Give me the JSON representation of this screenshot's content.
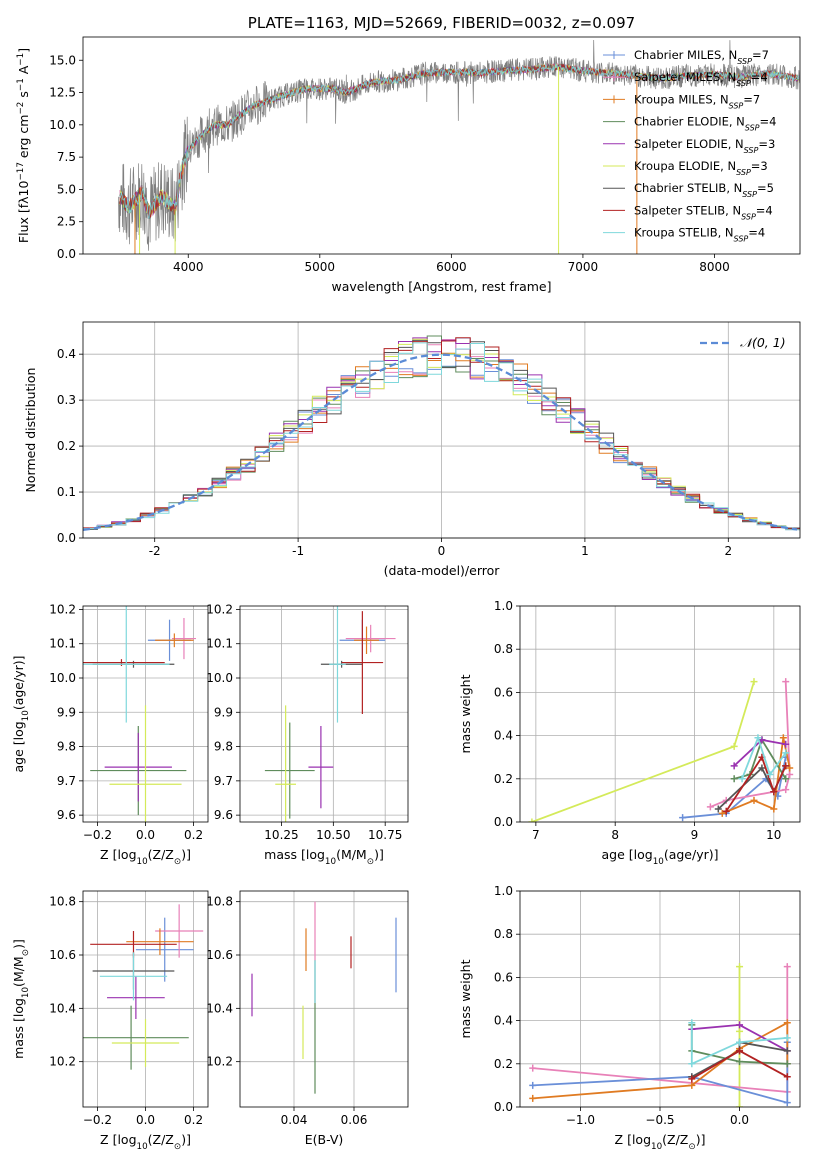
{
  "figure_title": "PLATE=1163, MJD=52669, FIBERID=0032, z=0.097",
  "colors": {
    "Chabrier MILES": "#6a8fd8",
    "Salpeter MILES": "#e881b8",
    "Kroupa MILES": "#e07b22",
    "Chabrier ELODIE": "#5f8c5c",
    "Salpeter ELODIE": "#9a32b0",
    "Kroupa ELODIE": "#d4ea5a",
    "Chabrier STELIB": "#555555",
    "Salpeter STELIB": "#b22222",
    "Kroupa STELIB": "#7fd8dc",
    "normal": "#5b8bd6"
  },
  "chart_data": [
    {
      "id": "spectrum",
      "type": "line",
      "title": "PLATE=1163, MJD=52669, FIBERID=0032, z=0.097",
      "xlabel": "wavelength [Angstrom, rest frame]",
      "ylabel": "Flux [fλ10⁻¹⁷ erg cm⁻² s⁻¹ A⁻¹]",
      "xlim": [
        3200,
        8650
      ],
      "ylim": [
        0,
        16.8
      ],
      "xticks": [
        4000,
        5000,
        6000,
        7000,
        8000
      ],
      "yticks": [
        0.0,
        2.5,
        5.0,
        7.5,
        10.0,
        12.5,
        15.0
      ],
      "grid": false,
      "legend_position": "top-right",
      "legend": [
        {
          "model": "Chabrier MILES",
          "label": "Chabrier MILES, N",
          "sub": "SSP",
          "rest": "=7"
        },
        {
          "model": "Salpeter MILES",
          "label": "Salpeter MILES, N",
          "sub": "SSP",
          "rest": "=4"
        },
        {
          "model": "Kroupa MILES",
          "label": "Kroupa MILES, N",
          "sub": "SSP",
          "rest": "=7"
        },
        {
          "model": "Chabrier ELODIE",
          "label": "Chabrier ELODIE, N",
          "sub": "SSP",
          "rest": "=4"
        },
        {
          "model": "Salpeter ELODIE",
          "label": "Salpeter ELODIE, N",
          "sub": "SSP",
          "rest": "=3"
        },
        {
          "model": "Kroupa ELODIE",
          "label": "Kroupa ELODIE, N",
          "sub": "SSP",
          "rest": "=3"
        },
        {
          "model": "Chabrier STELIB",
          "label": "Chabrier STELIB, N",
          "sub": "SSP",
          "rest": "=5"
        },
        {
          "model": "Salpeter STELIB",
          "label": "Salpeter STELIB, N",
          "sub": "SSP",
          "rest": "=4"
        },
        {
          "model": "Kroupa STELIB",
          "label": "Kroupa STELIB, N",
          "sub": "SSP",
          "rest": "=4"
        }
      ],
      "continuum": [
        [
          3470,
          4.5
        ],
        [
          3550,
          3.6
        ],
        [
          3650,
          4.8
        ],
        [
          3700,
          3.2
        ],
        [
          3800,
          4.5
        ],
        [
          3900,
          3.5
        ],
        [
          3950,
          6.5
        ],
        [
          4000,
          8.0
        ],
        [
          4100,
          9.2
        ],
        [
          4200,
          10.0
        ],
        [
          4300,
          10.0
        ],
        [
          4400,
          10.8
        ],
        [
          4500,
          11.5
        ],
        [
          4700,
          12.2
        ],
        [
          4900,
          12.8
        ],
        [
          5100,
          12.8
        ],
        [
          5200,
          12.5
        ],
        [
          5400,
          13.3
        ],
        [
          5600,
          13.5
        ],
        [
          5800,
          14.0
        ],
        [
          6000,
          14.1
        ],
        [
          6200,
          14.0
        ],
        [
          6400,
          14.2
        ],
        [
          6600,
          14.3
        ],
        [
          6800,
          14.5
        ],
        [
          7000,
          14.2
        ],
        [
          7200,
          14.0
        ],
        [
          7400,
          13.8
        ],
        [
          7600,
          13.6
        ],
        [
          7800,
          13.8
        ],
        [
          8000,
          13.9
        ],
        [
          8200,
          13.7
        ],
        [
          8400,
          14.0
        ],
        [
          8650,
          13.6
        ]
      ],
      "dips": [
        [
          3595,
          0
        ],
        [
          3630,
          0
        ],
        [
          3900,
          0
        ],
        [
          6815,
          0
        ],
        [
          7410,
          0
        ]
      ],
      "observed_range": [
        3470,
        8650
      ]
    },
    {
      "id": "residuals",
      "type": "histogram",
      "xlabel": "(data-model)/error",
      "ylabel": "Normed distribution",
      "xlim": [
        -2.5,
        2.5
      ],
      "ylim": [
        0,
        0.47
      ],
      "xticks": [
        -2,
        -1,
        0,
        1,
        2
      ],
      "yticks": [
        0.0,
        0.1,
        0.2,
        0.3,
        0.4
      ],
      "grid": true,
      "legend_position": "top-right",
      "reference_curve": {
        "name": "𝒩(0, 1)",
        "mean": 0,
        "sigma": 1
      }
    },
    {
      "id": "age-vs-z",
      "type": "errorbar",
      "xlabel": "Z [log₁₀(Z/Z⊙)]",
      "ylabel": "age  [log₁₀(age/yr)]",
      "xlim": [
        -0.26,
        0.26
      ],
      "ylim": [
        9.58,
        10.21
      ],
      "xticks": [
        -0.2,
        0.0,
        0.2
      ],
      "xticklabels": [
        "−0.2",
        "0.0",
        "0.2"
      ],
      "yticks": [
        9.6,
        9.7,
        9.8,
        9.9,
        10.0,
        10.1,
        10.2
      ],
      "grid": true,
      "points": [
        {
          "model": "Chabrier MILES",
          "x": 0.1,
          "y": 10.11,
          "xerr": 0.09,
          "yerr": 0.06
        },
        {
          "model": "Salpeter MILES",
          "x": 0.16,
          "y": 10.115,
          "xerr": 0.05,
          "yerr": 0.06
        },
        {
          "model": "Kroupa MILES",
          "x": 0.12,
          "y": 10.11,
          "xerr": 0.08,
          "yerr": 0.02
        },
        {
          "model": "Chabrier ELODIE",
          "x": -0.03,
          "y": 9.73,
          "xerr": 0.2,
          "yerr": 0.13
        },
        {
          "model": "Salpeter ELODIE",
          "x": -0.03,
          "y": 9.74,
          "xerr": 0.14,
          "yerr": 0.1
        },
        {
          "model": "Kroupa ELODIE",
          "x": 0.0,
          "y": 9.69,
          "xerr": 0.15,
          "yerr": 0.23
        },
        {
          "model": "Chabrier STELIB",
          "x": -0.05,
          "y": 10.04,
          "xerr": 0.17,
          "yerr": 0.01
        },
        {
          "model": "Salpeter STELIB",
          "x": -0.1,
          "y": 10.045,
          "xerr": 0.18,
          "yerr": 0.01
        },
        {
          "model": "Kroupa STELIB",
          "x": -0.08,
          "y": 10.04,
          "xerr": 0.18,
          "yerr": 0.17
        }
      ]
    },
    {
      "id": "age-vs-mass",
      "type": "errorbar",
      "xlabel": "mass [log₁₀(M/M⊙)]",
      "xlim": [
        10.05,
        10.86
      ],
      "ylim": [
        9.58,
        10.21
      ],
      "xticks": [
        10.25,
        10.5,
        10.75
      ],
      "xticklabels": [
        "10.25",
        "10.50",
        "10.75"
      ],
      "yticks": [
        9.6,
        9.7,
        9.8,
        9.9,
        10.0,
        10.1,
        10.2
      ],
      "grid": true,
      "points": [
        {
          "model": "Chabrier MILES",
          "x": 10.64,
          "y": 10.11,
          "xerr": 0.11,
          "yerr": 0.06
        },
        {
          "model": "Salpeter MILES",
          "x": 10.68,
          "y": 10.115,
          "xerr": 0.12,
          "yerr": 0.04
        },
        {
          "model": "Kroupa MILES",
          "x": 10.66,
          "y": 10.11,
          "xerr": 0.06,
          "yerr": 0.04
        },
        {
          "model": "Chabrier ELODIE",
          "x": 10.29,
          "y": 9.73,
          "xerr": 0.12,
          "yerr": 0.14
        },
        {
          "model": "Salpeter ELODIE",
          "x": 10.44,
          "y": 9.74,
          "xerr": 0.06,
          "yerr": 0.12
        },
        {
          "model": "Kroupa ELODIE",
          "x": 10.27,
          "y": 9.69,
          "xerr": 0.05,
          "yerr": 0.23
        },
        {
          "model": "Chabrier STELIB",
          "x": 10.54,
          "y": 10.04,
          "xerr": 0.1,
          "yerr": 0.01
        },
        {
          "model": "Salpeter STELIB",
          "x": 10.64,
          "y": 10.045,
          "xerr": 0.1,
          "yerr": 0.15
        },
        {
          "model": "Kroupa STELIB",
          "x": 10.52,
          "y": 10.04,
          "xerr": 0.04,
          "yerr": 0.17
        }
      ]
    },
    {
      "id": "weight-vs-age",
      "type": "line",
      "xlabel": "age  [log₁₀(age/yr)]",
      "ylabel": "mass weight",
      "xlim": [
        6.8,
        10.33
      ],
      "ylim": [
        0,
        1.0
      ],
      "xticks": [
        7,
        8,
        9,
        10
      ],
      "yticks": [
        0.0,
        0.2,
        0.4,
        0.6,
        0.8,
        1.0
      ],
      "grid": true,
      "series": [
        {
          "model": "Kroupa ELODIE",
          "x": [
            6.95,
            9.5,
            9.75
          ],
          "y": [
            0.0,
            0.35,
            0.65
          ]
        },
        {
          "model": "Chabrier MILES",
          "x": [
            8.85,
            9.4,
            9.9,
            10.05,
            10.15
          ],
          "y": [
            0.02,
            0.04,
            0.2,
            0.12,
            0.3
          ]
        },
        {
          "model": "Salpeter MILES",
          "x": [
            9.2,
            9.4,
            10.15,
            10.2,
            10.15
          ],
          "y": [
            0.07,
            0.1,
            0.15,
            0.22,
            0.65
          ]
        },
        {
          "model": "Kroupa MILES",
          "x": [
            9.35,
            9.75,
            10.0,
            10.12,
            10.2
          ],
          "y": [
            0.04,
            0.1,
            0.06,
            0.39,
            0.25
          ]
        },
        {
          "model": "Chabrier ELODIE",
          "x": [
            9.5,
            9.7,
            9.85,
            10.15
          ],
          "y": [
            0.2,
            0.22,
            0.38,
            0.2
          ]
        },
        {
          "model": "Salpeter ELODIE",
          "x": [
            9.5,
            9.85,
            10.15
          ],
          "y": [
            0.26,
            0.38,
            0.36
          ]
        },
        {
          "model": "Chabrier STELIB",
          "x": [
            9.3,
            9.85,
            10.0,
            10.15
          ],
          "y": [
            0.06,
            0.25,
            0.14,
            0.26
          ]
        },
        {
          "model": "Salpeter STELIB",
          "x": [
            9.4,
            9.85,
            10.0,
            10.15
          ],
          "y": [
            0.05,
            0.3,
            0.14,
            0.26
          ]
        },
        {
          "model": "Kroupa STELIB",
          "x": [
            9.6,
            9.8,
            9.95,
            10.15
          ],
          "y": [
            0.2,
            0.39,
            0.22,
            0.32
          ]
        }
      ]
    },
    {
      "id": "mass-vs-z",
      "type": "errorbar",
      "xlabel": "Z [log₁₀(Z/Z⊙)]",
      "ylabel": "mass [log₁₀(M/M⊙)]",
      "xlim": [
        -0.26,
        0.26
      ],
      "ylim": [
        10.03,
        10.84
      ],
      "xticks": [
        -0.2,
        0.0,
        0.2
      ],
      "xticklabels": [
        "−0.2",
        "0.0",
        "0.2"
      ],
      "yticks": [
        10.2,
        10.4,
        10.6,
        10.8
      ],
      "grid": true,
      "points": [
        {
          "model": "Chabrier MILES",
          "x": 0.08,
          "y": 10.62,
          "xerr": 0.12,
          "yerr": 0.12
        },
        {
          "model": "Salpeter MILES",
          "x": 0.14,
          "y": 10.69,
          "xerr": 0.1,
          "yerr": 0.1
        },
        {
          "model": "Kroupa MILES",
          "x": 0.06,
          "y": 10.65,
          "xerr": 0.14,
          "yerr": 0.05
        },
        {
          "model": "Chabrier ELODIE",
          "x": -0.06,
          "y": 10.29,
          "xerr": 0.24,
          "yerr": 0.12
        },
        {
          "model": "Salpeter ELODIE",
          "x": -0.04,
          "y": 10.44,
          "xerr": 0.12,
          "yerr": 0.08
        },
        {
          "model": "Kroupa ELODIE",
          "x": 0.0,
          "y": 10.27,
          "xerr": 0.14,
          "yerr": 0.09
        },
        {
          "model": "Chabrier STELIB",
          "x": -0.05,
          "y": 10.54,
          "xerr": 0.17,
          "yerr": 0.07
        },
        {
          "model": "Salpeter STELIB",
          "x": -0.05,
          "y": 10.64,
          "xerr": 0.18,
          "yerr": 0.05
        },
        {
          "model": "Kroupa STELIB",
          "x": -0.05,
          "y": 10.52,
          "xerr": 0.14,
          "yerr": 0.09
        }
      ]
    },
    {
      "id": "mass-vs-ebv",
      "type": "errorbar",
      "xlabel": "E(B-V)",
      "xlim": [
        0.022,
        0.078
      ],
      "ylim": [
        10.03,
        10.84
      ],
      "xticks": [
        0.04,
        0.06
      ],
      "xticklabels": [
        "0.04",
        "0.06"
      ],
      "yticks": [
        10.2,
        10.4,
        10.6,
        10.8
      ],
      "grid": true,
      "points": [
        {
          "model": "Chabrier MILES",
          "x": 0.074,
          "y": 10.6,
          "xerr": 0,
          "yerr": 0.14
        },
        {
          "model": "Salpeter MILES",
          "x": 0.047,
          "y": 10.69,
          "xerr": 0,
          "yerr": 0.11
        },
        {
          "model": "Kroupa MILES",
          "x": 0.044,
          "y": 10.62,
          "xerr": 0,
          "yerr": 0.08
        },
        {
          "model": "Chabrier ELODIE",
          "x": 0.047,
          "y": 10.25,
          "xerr": 0,
          "yerr": 0.17
        },
        {
          "model": "Salpeter ELODIE",
          "x": 0.026,
          "y": 10.45,
          "xerr": 0,
          "yerr": 0.08
        },
        {
          "model": "Kroupa ELODIE",
          "x": 0.043,
          "y": 10.31,
          "xerr": 0,
          "yerr": 0.1
        },
        {
          "model": "Chabrier STELIB",
          "x": 0.047,
          "y": 10.5,
          "xerr": 0,
          "yerr": 0.08
        },
        {
          "model": "Salpeter STELIB",
          "x": 0.059,
          "y": 10.61,
          "xerr": 0,
          "yerr": 0.06
        },
        {
          "model": "Kroupa STELIB",
          "x": 0.047,
          "y": 10.5,
          "xerr": 0,
          "yerr": 0.08
        }
      ]
    },
    {
      "id": "weight-vs-z",
      "type": "line",
      "xlabel": "Z [log₁₀(Z/Z⊙)]",
      "ylabel": "mass weight",
      "xlim": [
        -1.38,
        0.38
      ],
      "ylim": [
        0,
        1.0
      ],
      "xticks": [
        -1.0,
        -0.5,
        0.0
      ],
      "xticklabels": [
        "−1.0",
        "−0.5",
        "0.0"
      ],
      "yticks": [
        0.0,
        0.2,
        0.4,
        0.6,
        0.8,
        1.0
      ],
      "grid": true,
      "series": [
        {
          "model": "Kroupa ELODIE",
          "x": [
            0.0,
            0.0,
            0.0
          ],
          "y": [
            0.0,
            0.35,
            0.65
          ]
        },
        {
          "model": "Salpeter MILES",
          "x": [
            -1.3,
            0.3,
            0.3
          ],
          "y": [
            0.18,
            0.07,
            0.65
          ]
        },
        {
          "model": "Chabrier MILES",
          "x": [
            -1.3,
            -0.3,
            0.3,
            0.3
          ],
          "y": [
            0.1,
            0.14,
            0.02,
            0.3
          ]
        },
        {
          "model": "Kroupa MILES",
          "x": [
            -1.3,
            -0.3,
            0.0,
            0.3,
            0.3
          ],
          "y": [
            0.04,
            0.1,
            0.27,
            0.39,
            0.2
          ]
        },
        {
          "model": "Chabrier ELODIE",
          "x": [
            -0.3,
            -0.3,
            0.0,
            0.3
          ],
          "y": [
            0.38,
            0.26,
            0.21,
            0.2
          ]
        },
        {
          "model": "Salpeter ELODIE",
          "x": [
            -0.3,
            0.0,
            0.3
          ],
          "y": [
            0.36,
            0.38,
            0.26
          ]
        },
        {
          "model": "Chabrier STELIB",
          "x": [
            -0.3,
            0.0,
            0.0,
            0.3
          ],
          "y": [
            0.14,
            0.26,
            0.3,
            0.26
          ]
        },
        {
          "model": "Salpeter STELIB",
          "x": [
            -0.3,
            0.0,
            0.3
          ],
          "y": [
            0.13,
            0.26,
            0.14
          ]
        },
        {
          "model": "Kroupa STELIB",
          "x": [
            -0.3,
            -0.3,
            0.0,
            0.3
          ],
          "y": [
            0.39,
            0.2,
            0.3,
            0.32
          ]
        }
      ]
    }
  ]
}
